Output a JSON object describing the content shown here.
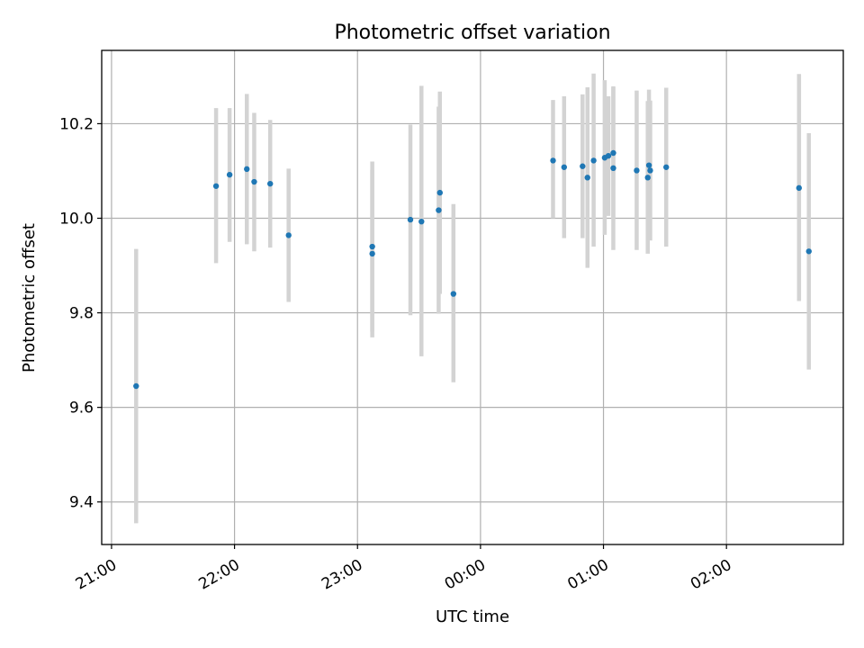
{
  "chart_data": {
    "type": "scatter",
    "title": "Photometric offset variation",
    "xlabel": "UTC time",
    "ylabel": "Photometric offset",
    "x_unit": "hours since 21:00 UTC",
    "xlim": [
      -0.08,
      5.95
    ],
    "ylim": [
      9.31,
      10.355
    ],
    "x_ticks": [
      {
        "value": 0,
        "label": "21:00"
      },
      {
        "value": 1,
        "label": "22:00"
      },
      {
        "value": 2,
        "label": "23:00"
      },
      {
        "value": 3,
        "label": "00:00"
      },
      {
        "value": 4,
        "label": "01:00"
      },
      {
        "value": 5,
        "label": "02:00"
      }
    ],
    "y_ticks": [
      {
        "value": 9.4,
        "label": "9.4"
      },
      {
        "value": 9.6,
        "label": "9.6"
      },
      {
        "value": 9.8,
        "label": "9.8"
      },
      {
        "value": 10.0,
        "label": "10.0"
      },
      {
        "value": 10.2,
        "label": "10.2"
      }
    ],
    "grid": true,
    "colors": {
      "marker": "#1f77b4",
      "errorbar": "#d3d3d3"
    },
    "series": [
      {
        "points": [
          {
            "x": 0.2,
            "y": 9.645,
            "lo": 9.355,
            "hi": 9.935
          },
          {
            "x": 0.85,
            "y": 10.068,
            "lo": 9.905,
            "hi": 10.233
          },
          {
            "x": 0.96,
            "y": 10.092,
            "lo": 9.95,
            "hi": 10.233
          },
          {
            "x": 1.1,
            "y": 10.104,
            "lo": 9.945,
            "hi": 10.263
          },
          {
            "x": 1.16,
            "y": 10.077,
            "lo": 9.93,
            "hi": 10.223
          },
          {
            "x": 1.29,
            "y": 10.073,
            "lo": 9.938,
            "hi": 10.208
          },
          {
            "x": 1.44,
            "y": 9.964,
            "lo": 9.823,
            "hi": 10.105
          },
          {
            "x": 2.12,
            "y": 9.94,
            "lo": 9.76,
            "hi": 10.12
          },
          {
            "x": 2.12,
            "y": 9.925,
            "lo": 9.748,
            "hi": 10.102
          },
          {
            "x": 2.43,
            "y": 9.997,
            "lo": 9.795,
            "hi": 10.198
          },
          {
            "x": 2.52,
            "y": 9.993,
            "lo": 9.708,
            "hi": 10.28
          },
          {
            "x": 2.66,
            "y": 10.017,
            "lo": 9.798,
            "hi": 10.236
          },
          {
            "x": 2.67,
            "y": 10.054,
            "lo": 9.84,
            "hi": 10.268
          },
          {
            "x": 2.78,
            "y": 9.84,
            "lo": 9.653,
            "hi": 10.03
          },
          {
            "x": 3.59,
            "y": 10.122,
            "lo": 10.0,
            "hi": 10.25
          },
          {
            "x": 3.68,
            "y": 10.108,
            "lo": 9.958,
            "hi": 10.258
          },
          {
            "x": 3.83,
            "y": 10.11,
            "lo": 9.958,
            "hi": 10.262
          },
          {
            "x": 3.87,
            "y": 10.086,
            "lo": 9.895,
            "hi": 10.277
          },
          {
            "x": 3.92,
            "y": 10.122,
            "lo": 9.94,
            "hi": 10.306
          },
          {
            "x": 4.01,
            "y": 10.128,
            "lo": 9.965,
            "hi": 10.292
          },
          {
            "x": 4.04,
            "y": 10.132,
            "lo": 10.005,
            "hi": 10.258
          },
          {
            "x": 4.08,
            "y": 10.138,
            "lo": 10.0,
            "hi": 10.277
          },
          {
            "x": 4.08,
            "y": 10.106,
            "lo": 9.933,
            "hi": 10.279
          },
          {
            "x": 4.27,
            "y": 10.101,
            "lo": 9.933,
            "hi": 10.27
          },
          {
            "x": 4.36,
            "y": 10.086,
            "lo": 9.925,
            "hi": 10.248
          },
          {
            "x": 4.37,
            "y": 10.112,
            "lo": 9.955,
            "hi": 10.272
          },
          {
            "x": 4.38,
            "y": 10.101,
            "lo": 9.953,
            "hi": 10.249
          },
          {
            "x": 4.51,
            "y": 10.108,
            "lo": 9.94,
            "hi": 10.276
          },
          {
            "x": 5.59,
            "y": 10.064,
            "lo": 9.825,
            "hi": 10.305
          },
          {
            "x": 5.67,
            "y": 9.93,
            "lo": 9.68,
            "hi": 10.18
          }
        ]
      }
    ]
  }
}
